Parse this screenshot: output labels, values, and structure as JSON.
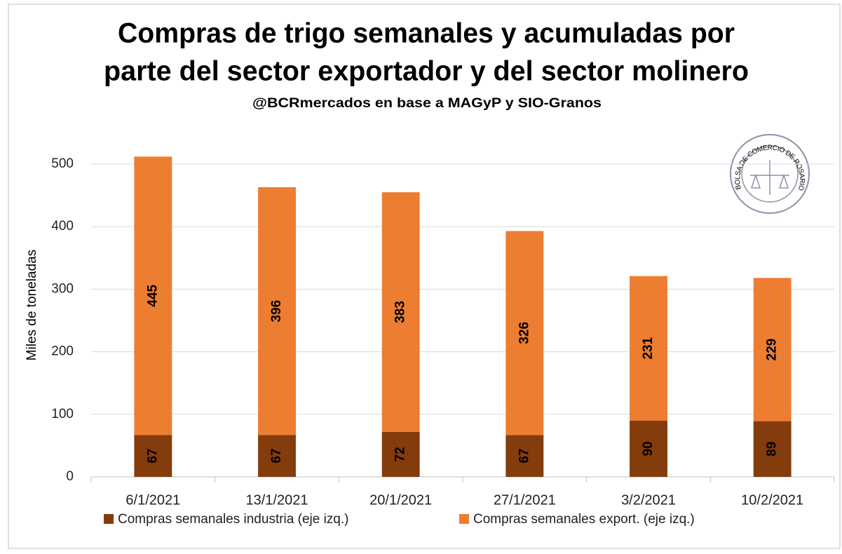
{
  "chart_data": {
    "type": "stacked_bar",
    "title": [
      "Compras de trigo semanales y acumuladas por",
      "parte del sector exportador y del sector molinero"
    ],
    "subtitle": "@BCRmercados en base a MAGyP y SIO-Granos",
    "logo": "BOLSA DE COMERCIO DE ROSARIO",
    "y_label": "Miles de toneladas",
    "categories": [
      "6/1/2021",
      "13/1/2021",
      "20/1/2021",
      "27/1/2021",
      "3/2/2021",
      "10/2/2021"
    ],
    "series": [
      {
        "name": "Compras semanales industria (eje izq.)",
        "color": "#843c0c",
        "values": [
          67,
          67,
          72,
          67,
          90,
          89
        ]
      },
      {
        "name": "Compras semanales export.  (eje izq.)",
        "color": "#ed7d31",
        "values": [
          445,
          396,
          383,
          326,
          231,
          229
        ]
      }
    ],
    "ylim": [
      0,
      520
    ],
    "yticks": [
      0,
      100,
      200,
      300,
      400,
      500
    ],
    "grid": true
  }
}
